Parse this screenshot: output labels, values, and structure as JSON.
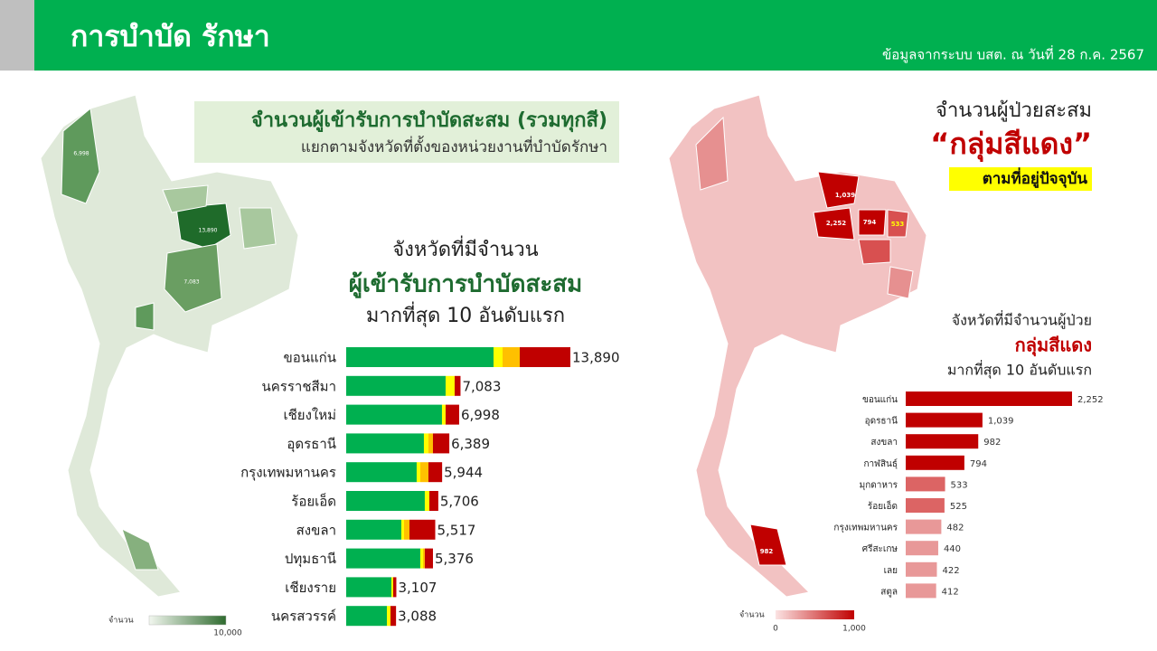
{
  "header": {
    "title": "การบำบัด รักษา",
    "source": "ข้อมูลจากระบบ บสต. ณ วันที่ 28 ก.ค. 2567"
  },
  "left_panel": {
    "heading": "จำนวนผู้เข้ารับการบำบัดสะสม (รวมทุกสี)",
    "subheading": "แยกตามจังหวัดที่ตั้งของหน่วยงานที่บำบัดรักษา",
    "map_labels": [
      "13,890",
      "7,083",
      "6,998"
    ],
    "legend": {
      "label": "จำนวน",
      "max": "10,000"
    }
  },
  "right_panel": {
    "heading": "จำนวนผู้ป่วยสะสม",
    "highlight": "“กลุ่มสีแดง”",
    "subheading": "ตามที่อยู่ปัจจุบัน",
    "map_labels": [
      "1,039",
      "2,252",
      "794",
      "533",
      "982"
    ],
    "legend": {
      "label": "จำนวน",
      "min": "0",
      "max": "1,000"
    }
  },
  "chart_data": [
    {
      "type": "stacked-bar",
      "title_lines": [
        "จังหวัดที่มีจำนวน",
        "ผู้เข้ารับการบำบัดสะสม",
        "มากที่สุด 10 อันดับแรก"
      ],
      "categories": [
        "ขอนแก่น",
        "นครราชสีมา",
        "เชียงใหม่",
        "อุดรธานี",
        "กรุงเทพมหานคร",
        "ร้อยเอ็ด",
        "สงขลา",
        "ปทุมธานี",
        "เชียงราย",
        "นครสวรรค์"
      ],
      "series": [
        {
          "color": "#00b050",
          "values": [
            9130,
            6160,
            5935,
            4815,
            4367,
            4871,
            3416,
            4591,
            2800,
            2520
          ]
        },
        {
          "color": "#ffff00",
          "values": [
            560,
            560,
            224,
            280,
            224,
            280,
            168,
            168,
            112,
            224
          ]
        },
        {
          "color": "#ffc000",
          "values": [
            1064,
            0,
            0,
            280,
            504,
            0,
            336,
            112,
            0,
            0
          ]
        },
        {
          "color": "#c00000",
          "values": [
            3136,
            363,
            839,
            1014,
            849,
            555,
            1597,
            505,
            195,
            344
          ]
        }
      ],
      "totals": [
        13890,
        7083,
        6998,
        6389,
        5944,
        5706,
        5517,
        5376,
        3107,
        3088
      ],
      "total_labels": [
        "13,890",
        "7,083",
        "6,998",
        "6,389",
        "5,944",
        "5,706",
        "5,517",
        "5,376",
        "3,107",
        "3,088"
      ]
    },
    {
      "type": "bar",
      "title_lines": [
        "จังหวัดที่มีจำนวนผู้ป่วย",
        "กลุ่มสีแดง",
        "มากที่สุด 10 อันดับแรก"
      ],
      "categories": [
        "ขอนแก่น",
        "อุดรธานี",
        "สงขลา",
        "กาฬสินธุ์",
        "มุกดาหาร",
        "ร้อยเอ็ด",
        "กรุงเทพมหานคร",
        "ศรีสะเกษ",
        "เลย",
        "สตูล"
      ],
      "values": [
        2252,
        1039,
        982,
        794,
        533,
        525,
        482,
        440,
        422,
        412
      ],
      "value_labels": [
        "2,252",
        "1,039",
        "982",
        "794",
        "533",
        "525",
        "482",
        "440",
        "422",
        "412"
      ],
      "colors": [
        "#c00000",
        "#c00000",
        "#c00000",
        "#c00000",
        "#dc6464",
        "#dc6464",
        "#e89898",
        "#e89898",
        "#e89898",
        "#e89898"
      ]
    }
  ]
}
